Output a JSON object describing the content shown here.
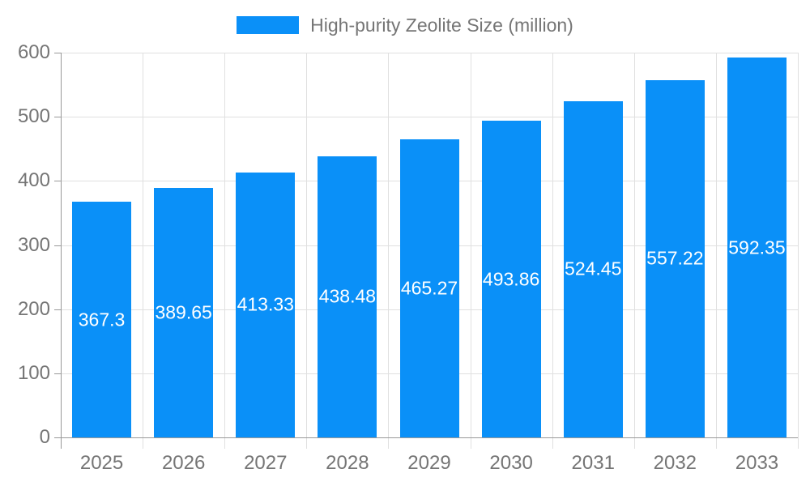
{
  "legend": {
    "label": "High-purity Zeolite Size (million)",
    "swatch_color": "#0a90f8"
  },
  "chart_data": {
    "type": "bar",
    "title": "High-purity Zeolite Size (million)",
    "categories": [
      "2025",
      "2026",
      "2027",
      "2028",
      "2029",
      "2030",
      "2031",
      "2032",
      "2033"
    ],
    "series": [
      {
        "name": "High-purity Zeolite Size (million)",
        "values": [
          367.3,
          389.65,
          413.33,
          438.48,
          465.27,
          493.86,
          524.45,
          557.22,
          592.35
        ]
      }
    ],
    "value_labels": [
      "367.3",
      "389.65",
      "413.33",
      "438.48",
      "465.27",
      "493.86",
      "524.45",
      "557.22",
      "592.35"
    ],
    "xlabel": "",
    "ylabel": "",
    "ylim": [
      0,
      600
    ],
    "y_ticks": [
      0,
      100,
      200,
      300,
      400,
      500,
      600
    ],
    "grid": true,
    "legend_position": "top-center",
    "colors": {
      "bar": "#0a90f8",
      "value_label": "#ffffff",
      "axis_label": "#757575",
      "axis_line": "#999999",
      "gridline": "#e0e0e0",
      "background": "#ffffff"
    }
  }
}
